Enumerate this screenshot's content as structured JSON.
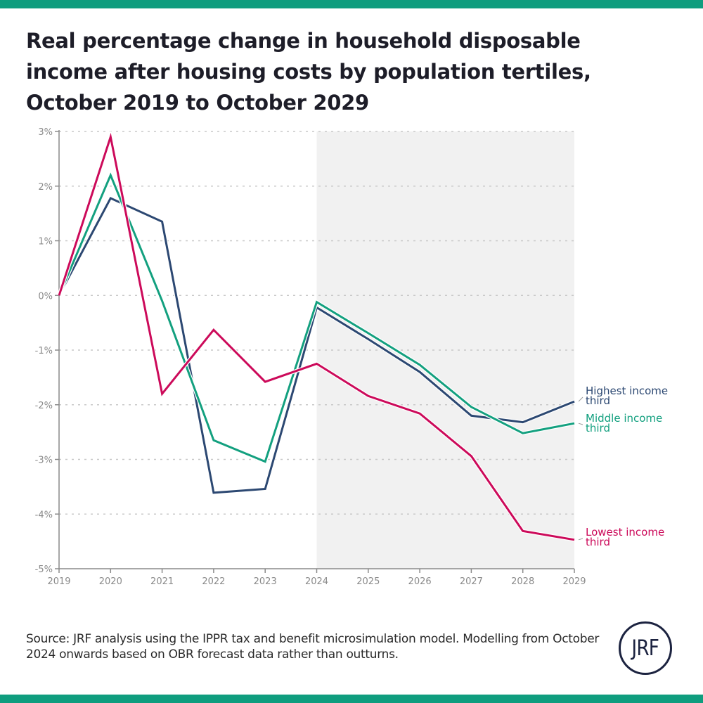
{
  "header": {
    "title": "Real percentage change in household disposable income after housing costs by population tertiles, October 2019 to October 2029"
  },
  "footer": {
    "source": "Source: JRF analysis using the IPPR tax and benefit microsimulation model. Modelling from October 2024 onwards based on OBR forecast data rather than outturns.",
    "logo_text": "JRF"
  },
  "colors": {
    "brand_bar": "#0f9d7e",
    "highest": "#2c4872",
    "middle": "#13a07f",
    "lowest": "#cc0a5a",
    "forecast_shade": "#f1f1f1"
  },
  "chart_data": {
    "type": "line",
    "title": "Real percentage change in household disposable income after housing costs by population tertiles, October 2019 to October 2029",
    "xlabel": "",
    "ylabel": "",
    "x": [
      "2019",
      "2020",
      "2021",
      "2022",
      "2023",
      "2024",
      "2025",
      "2026",
      "2027",
      "2028",
      "2029"
    ],
    "ylim": [
      -5,
      3
    ],
    "yticks": [
      3,
      2,
      1,
      0,
      -1,
      -2,
      -3,
      -4,
      -5
    ],
    "ytick_labels": [
      "3%",
      "2%",
      "1%",
      "0%",
      "-1%",
      "-2%",
      "-3%",
      "-4%",
      "-5%"
    ],
    "grid": "horizontal dotted",
    "shaded_region": {
      "from": "2024",
      "to": "2029",
      "meaning": "forecast (OBR data)"
    },
    "legend": "right (direct labels)",
    "series": [
      {
        "name": "Highest income third",
        "label_lines": [
          "Highest income",
          "third"
        ],
        "color": "#2c4872",
        "values": [
          0,
          1.78,
          1.35,
          -3.61,
          -3.54,
          -0.22,
          -0.8,
          -1.4,
          -2.2,
          -2.32,
          -1.94
        ]
      },
      {
        "name": "Middle income third",
        "label_lines": [
          "Middle income",
          "third"
        ],
        "color": "#13a07f",
        "values": [
          0,
          2.2,
          -0.1,
          -2.65,
          -3.04,
          -0.12,
          -0.69,
          -1.27,
          -2.04,
          -2.52,
          -2.34
        ]
      },
      {
        "name": "Lowest income third",
        "label_lines": [
          "Lowest income",
          "third"
        ],
        "color": "#cc0a5a",
        "values": [
          0,
          2.9,
          -1.8,
          -0.63,
          -1.58,
          -1.25,
          -1.84,
          -2.16,
          -2.94,
          -4.31,
          -4.47
        ]
      }
    ]
  }
}
